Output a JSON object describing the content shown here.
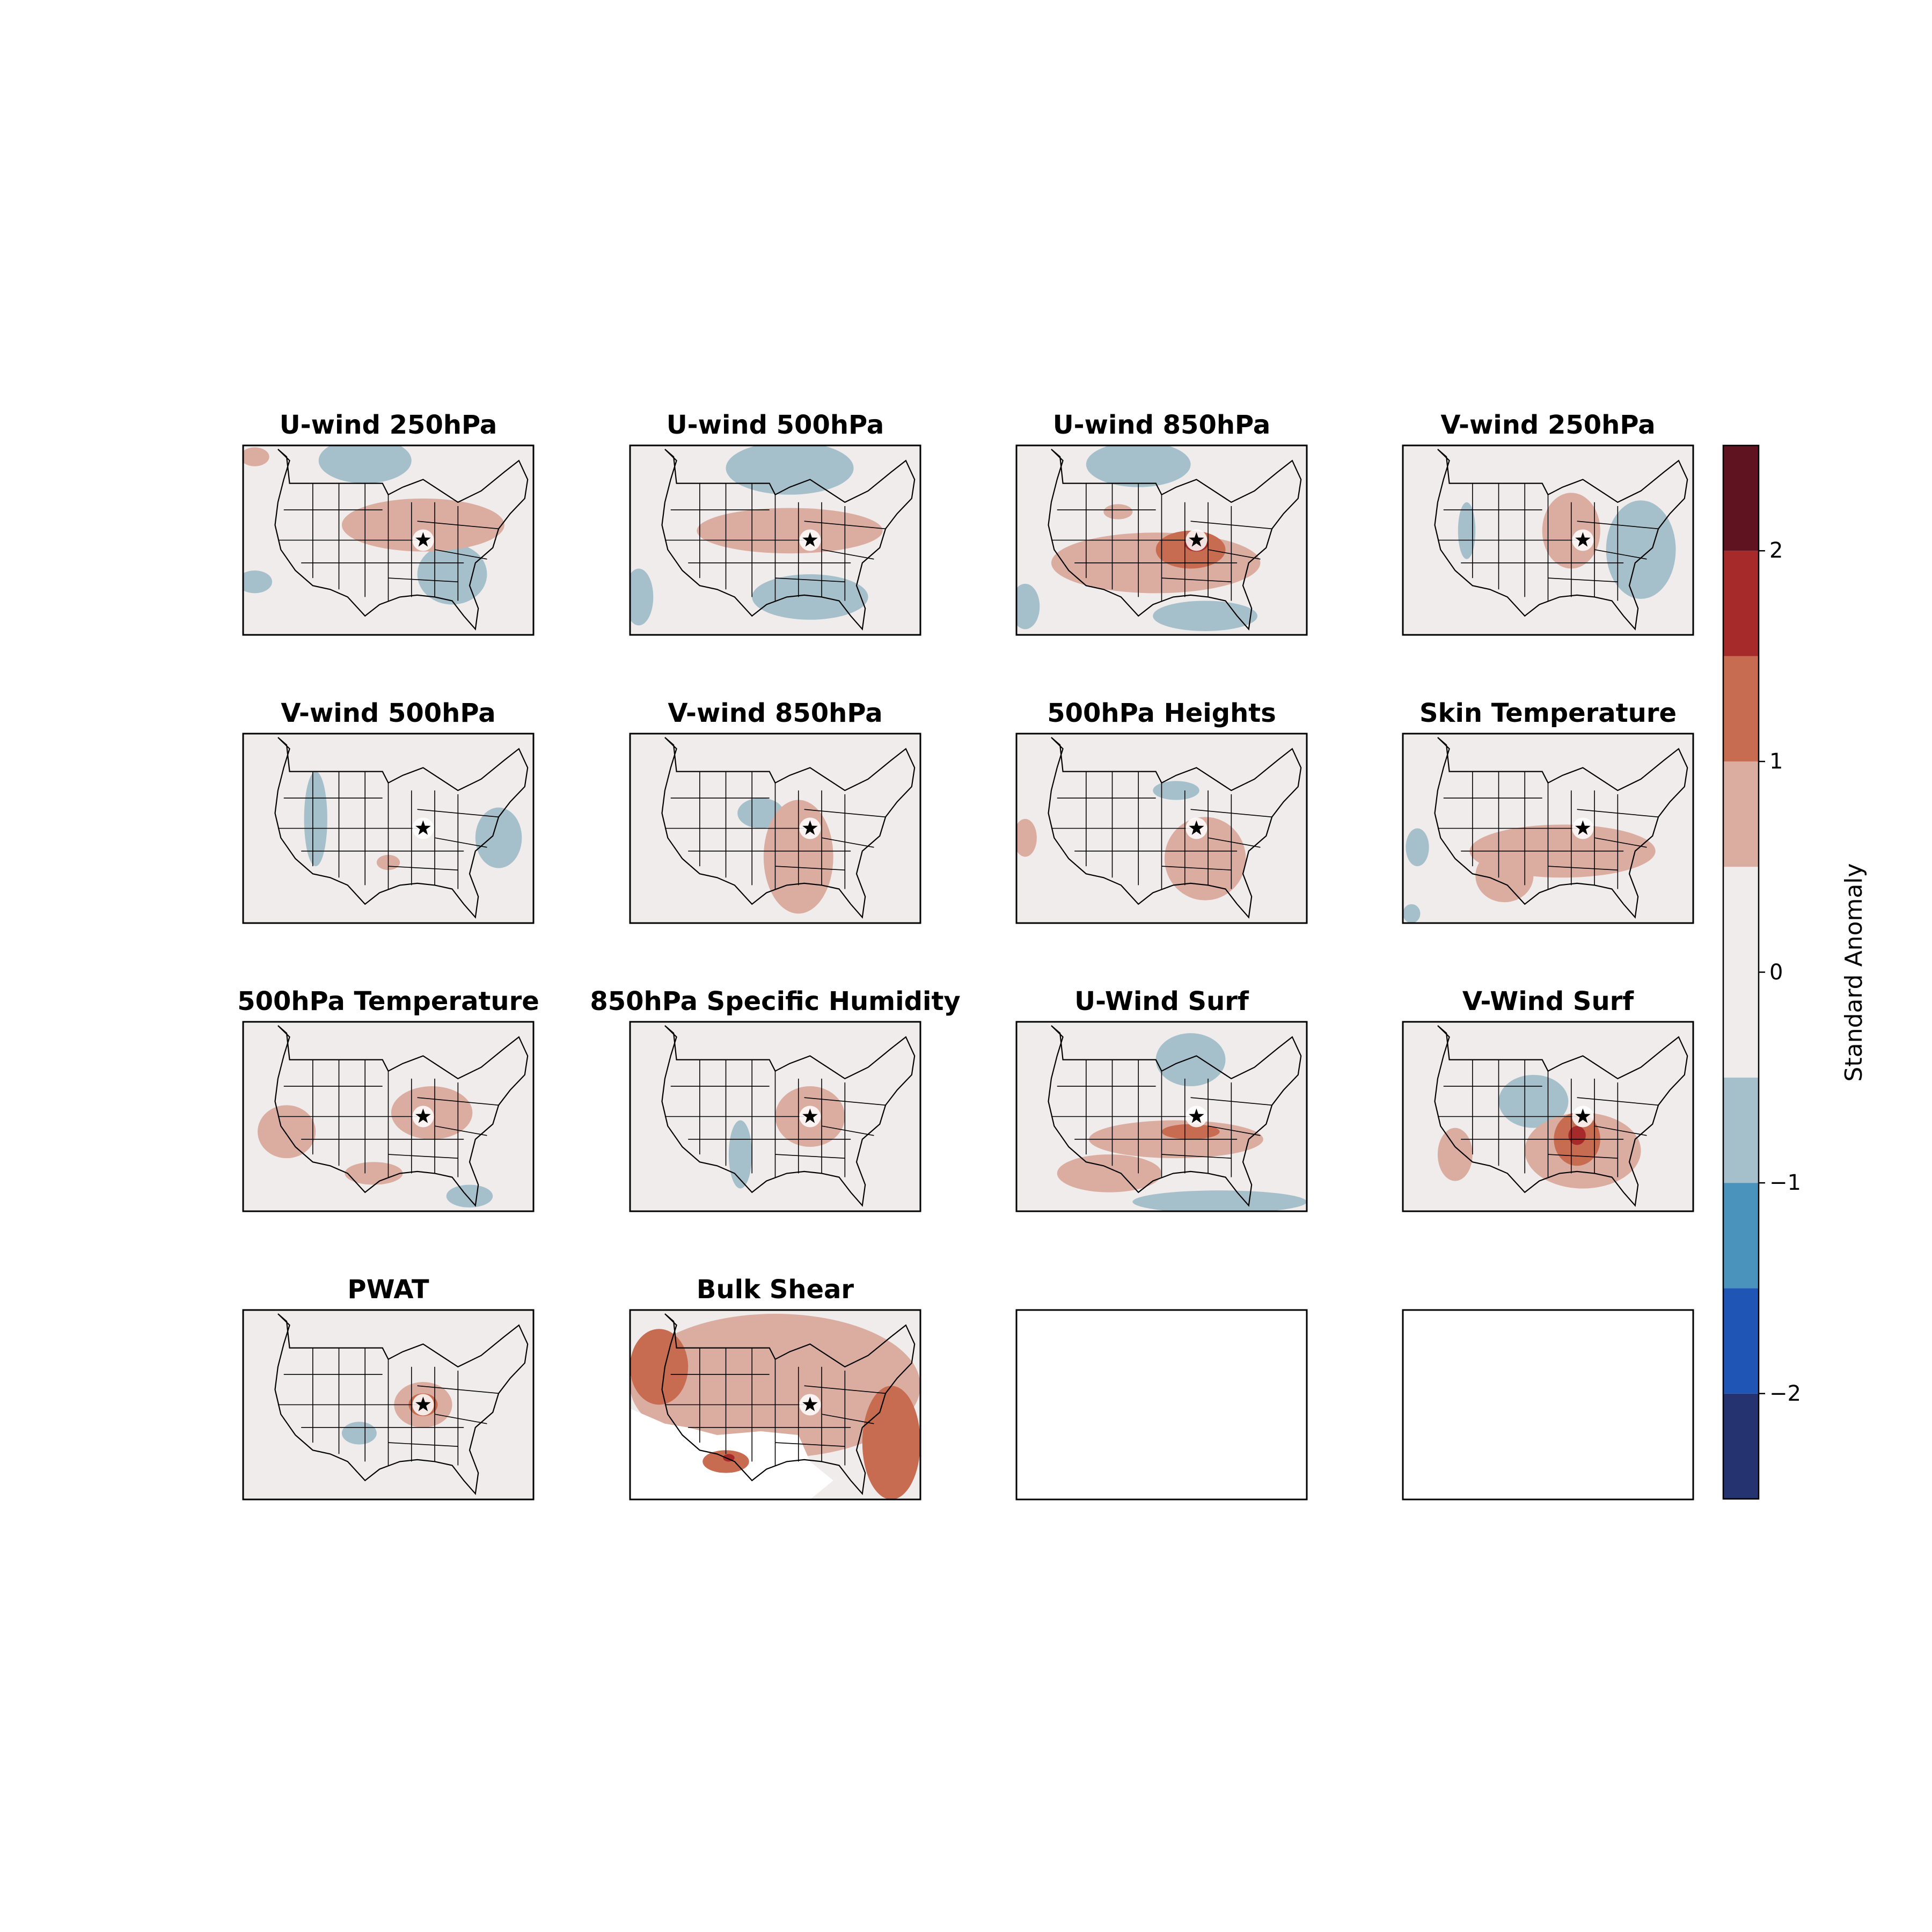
{
  "chart_data": {
    "type": "heatmap",
    "description_kind": "composite standardized anomaly maps over the contiguous United States",
    "colorbar": {
      "label": "Standard Anomaly",
      "ticks": [
        2,
        1,
        0,
        -1,
        -2
      ],
      "tick_labels": [
        "2",
        "1",
        "0",
        "−1",
        "−2"
      ],
      "range": [
        -2.5,
        2.5
      ],
      "levels": [
        -2.5,
        -2.0,
        -1.5,
        -1.0,
        -0.5,
        0.5,
        1.0,
        1.5,
        2.0,
        2.5
      ],
      "colors": [
        "#263371",
        "#1f56b6",
        "#4a93bd",
        "#a6c0cb",
        "#f1ecec",
        "#dbada0",
        "#c76c50",
        "#a72a2b",
        "#5f121f"
      ]
    },
    "panels": [
      {
        "title": "U-wind 250hPa",
        "empty": false,
        "positive": [
          {
            "cx": 0.62,
            "cy": 0.42,
            "rx": 0.28,
            "ry": 0.14,
            "level": 0.75
          },
          {
            "cx": 0.04,
            "cy": 0.06,
            "rx": 0.05,
            "ry": 0.05,
            "level": 0.75
          }
        ],
        "negative": [
          {
            "cx": 0.42,
            "cy": 0.08,
            "rx": 0.16,
            "ry": 0.12,
            "level": -0.75
          },
          {
            "cx": 0.72,
            "cy": 0.68,
            "rx": 0.12,
            "ry": 0.16,
            "level": -0.75
          },
          {
            "cx": 0.04,
            "cy": 0.72,
            "rx": 0.06,
            "ry": 0.06,
            "level": -0.75
          }
        ]
      },
      {
        "title": "U-wind 500hPa",
        "empty": false,
        "positive": [
          {
            "cx": 0.55,
            "cy": 0.45,
            "rx": 0.32,
            "ry": 0.12,
            "level": 0.75
          }
        ],
        "negative": [
          {
            "cx": 0.55,
            "cy": 0.12,
            "rx": 0.22,
            "ry": 0.14,
            "level": -0.75
          },
          {
            "cx": 0.62,
            "cy": 0.8,
            "rx": 0.2,
            "ry": 0.12,
            "level": -0.75
          },
          {
            "cx": 0.03,
            "cy": 0.8,
            "rx": 0.05,
            "ry": 0.15,
            "level": -0.75
          }
        ]
      },
      {
        "title": "U-wind 850hPa",
        "empty": false,
        "positive": [
          {
            "cx": 0.48,
            "cy": 0.62,
            "rx": 0.36,
            "ry": 0.16,
            "level": 0.75
          },
          {
            "cx": 0.6,
            "cy": 0.55,
            "rx": 0.12,
            "ry": 0.1,
            "level": 1.25
          },
          {
            "cx": 0.62,
            "cy": 0.52,
            "rx": 0.04,
            "ry": 0.04,
            "level": 1.75
          },
          {
            "cx": 0.35,
            "cy": 0.35,
            "rx": 0.05,
            "ry": 0.04,
            "level": 0.75
          }
        ],
        "negative": [
          {
            "cx": 0.42,
            "cy": 0.1,
            "rx": 0.18,
            "ry": 0.12,
            "level": -0.75
          },
          {
            "cx": 0.65,
            "cy": 0.9,
            "rx": 0.18,
            "ry": 0.08,
            "level": -0.75
          },
          {
            "cx": 0.03,
            "cy": 0.85,
            "rx": 0.05,
            "ry": 0.12,
            "level": -0.75
          }
        ]
      },
      {
        "title": "V-wind 250hPa",
        "empty": false,
        "positive": [
          {
            "cx": 0.58,
            "cy": 0.45,
            "rx": 0.1,
            "ry": 0.2,
            "level": 0.75
          }
        ],
        "negative": [
          {
            "cx": 0.82,
            "cy": 0.55,
            "rx": 0.12,
            "ry": 0.26,
            "level": -0.75
          },
          {
            "cx": 0.22,
            "cy": 0.45,
            "rx": 0.03,
            "ry": 0.15,
            "level": -0.75
          }
        ]
      },
      {
        "title": "V-wind 500hPa",
        "empty": false,
        "positive": [
          {
            "cx": 0.5,
            "cy": 0.68,
            "rx": 0.04,
            "ry": 0.04,
            "level": 0.75
          }
        ],
        "negative": [
          {
            "cx": 0.25,
            "cy": 0.45,
            "rx": 0.04,
            "ry": 0.25,
            "level": -0.75
          },
          {
            "cx": 0.88,
            "cy": 0.55,
            "rx": 0.08,
            "ry": 0.16,
            "level": -0.75
          }
        ]
      },
      {
        "title": "V-wind 850hPa",
        "empty": false,
        "positive": [
          {
            "cx": 0.58,
            "cy": 0.65,
            "rx": 0.12,
            "ry": 0.3,
            "level": 0.75
          }
        ],
        "negative": [
          {
            "cx": 0.45,
            "cy": 0.42,
            "rx": 0.08,
            "ry": 0.08,
            "level": -0.75
          }
        ]
      },
      {
        "title": "500hPa Heights",
        "empty": false,
        "positive": [
          {
            "cx": 0.65,
            "cy": 0.66,
            "rx": 0.14,
            "ry": 0.22,
            "level": 0.75
          },
          {
            "cx": 0.03,
            "cy": 0.55,
            "rx": 0.04,
            "ry": 0.1,
            "level": 0.75
          }
        ],
        "negative": [
          {
            "cx": 0.55,
            "cy": 0.3,
            "rx": 0.08,
            "ry": 0.05,
            "level": -0.75
          }
        ]
      },
      {
        "title": "Skin Temperature",
        "empty": false,
        "positive": [
          {
            "cx": 0.55,
            "cy": 0.62,
            "rx": 0.32,
            "ry": 0.14,
            "level": 0.75
          },
          {
            "cx": 0.35,
            "cy": 0.75,
            "rx": 0.1,
            "ry": 0.14,
            "level": 0.75
          }
        ],
        "negative": [
          {
            "cx": 0.05,
            "cy": 0.6,
            "rx": 0.04,
            "ry": 0.1,
            "level": -0.75
          },
          {
            "cx": 0.03,
            "cy": 0.95,
            "rx": 0.03,
            "ry": 0.05,
            "level": -0.75
          }
        ]
      },
      {
        "title": "500hPa Temperature",
        "empty": false,
        "positive": [
          {
            "cx": 0.65,
            "cy": 0.48,
            "rx": 0.14,
            "ry": 0.14,
            "level": 0.75
          },
          {
            "cx": 0.15,
            "cy": 0.58,
            "rx": 0.1,
            "ry": 0.14,
            "level": 0.75
          },
          {
            "cx": 0.45,
            "cy": 0.8,
            "rx": 0.1,
            "ry": 0.06,
            "level": 0.75
          }
        ],
        "negative": [
          {
            "cx": 0.78,
            "cy": 0.92,
            "rx": 0.08,
            "ry": 0.06,
            "level": -0.75
          }
        ]
      },
      {
        "title": "850hPa Specific Humidity",
        "empty": false,
        "positive": [
          {
            "cx": 0.62,
            "cy": 0.5,
            "rx": 0.12,
            "ry": 0.16,
            "level": 0.75
          }
        ],
        "negative": [
          {
            "cx": 0.38,
            "cy": 0.7,
            "rx": 0.04,
            "ry": 0.18,
            "level": -0.75
          }
        ]
      },
      {
        "title": "U-Wind Surf",
        "empty": false,
        "positive": [
          {
            "cx": 0.55,
            "cy": 0.62,
            "rx": 0.3,
            "ry": 0.1,
            "level": 0.75
          },
          {
            "cx": 0.32,
            "cy": 0.8,
            "rx": 0.18,
            "ry": 0.1,
            "level": 0.75
          },
          {
            "cx": 0.6,
            "cy": 0.58,
            "rx": 0.1,
            "ry": 0.04,
            "level": 1.25
          }
        ],
        "negative": [
          {
            "cx": 0.6,
            "cy": 0.2,
            "rx": 0.12,
            "ry": 0.14,
            "level": -0.75
          },
          {
            "cx": 0.7,
            "cy": 0.95,
            "rx": 0.3,
            "ry": 0.06,
            "level": -0.75
          }
        ]
      },
      {
        "title": "V-Wind Surf",
        "empty": false,
        "positive": [
          {
            "cx": 0.62,
            "cy": 0.68,
            "rx": 0.2,
            "ry": 0.2,
            "level": 0.75
          },
          {
            "cx": 0.6,
            "cy": 0.62,
            "rx": 0.08,
            "ry": 0.14,
            "level": 1.25
          },
          {
            "cx": 0.6,
            "cy": 0.6,
            "rx": 0.03,
            "ry": 0.05,
            "level": 1.75
          },
          {
            "cx": 0.18,
            "cy": 0.7,
            "rx": 0.06,
            "ry": 0.14,
            "level": 0.75
          }
        ],
        "negative": [
          {
            "cx": 0.45,
            "cy": 0.42,
            "rx": 0.12,
            "ry": 0.14,
            "level": -0.75
          }
        ]
      },
      {
        "title": "PWAT",
        "empty": false,
        "positive": [
          {
            "cx": 0.62,
            "cy": 0.5,
            "rx": 0.1,
            "ry": 0.12,
            "level": 0.75
          },
          {
            "cx": 0.62,
            "cy": 0.5,
            "rx": 0.05,
            "ry": 0.06,
            "level": 1.25
          }
        ],
        "negative": [
          {
            "cx": 0.4,
            "cy": 0.65,
            "rx": 0.06,
            "ry": 0.06,
            "level": -0.75
          }
        ]
      },
      {
        "title": "Bulk Shear",
        "empty": false,
        "missing_region": true,
        "positive": [
          {
            "cx": 0.5,
            "cy": 0.4,
            "rx": 0.5,
            "ry": 0.38,
            "level": 0.75
          },
          {
            "cx": 0.1,
            "cy": 0.3,
            "rx": 0.1,
            "ry": 0.2,
            "level": 1.25
          },
          {
            "cx": 0.9,
            "cy": 0.7,
            "rx": 0.1,
            "ry": 0.3,
            "level": 1.25
          },
          {
            "cx": 0.33,
            "cy": 0.8,
            "rx": 0.08,
            "ry": 0.06,
            "level": 1.25
          },
          {
            "cx": 0.34,
            "cy": 0.78,
            "rx": 0.02,
            "ry": 0.02,
            "level": 1.75
          }
        ],
        "negative": []
      },
      {
        "title": "",
        "empty": true,
        "positive": [],
        "negative": []
      },
      {
        "title": "",
        "empty": true,
        "positive": [],
        "negative": []
      }
    ]
  }
}
